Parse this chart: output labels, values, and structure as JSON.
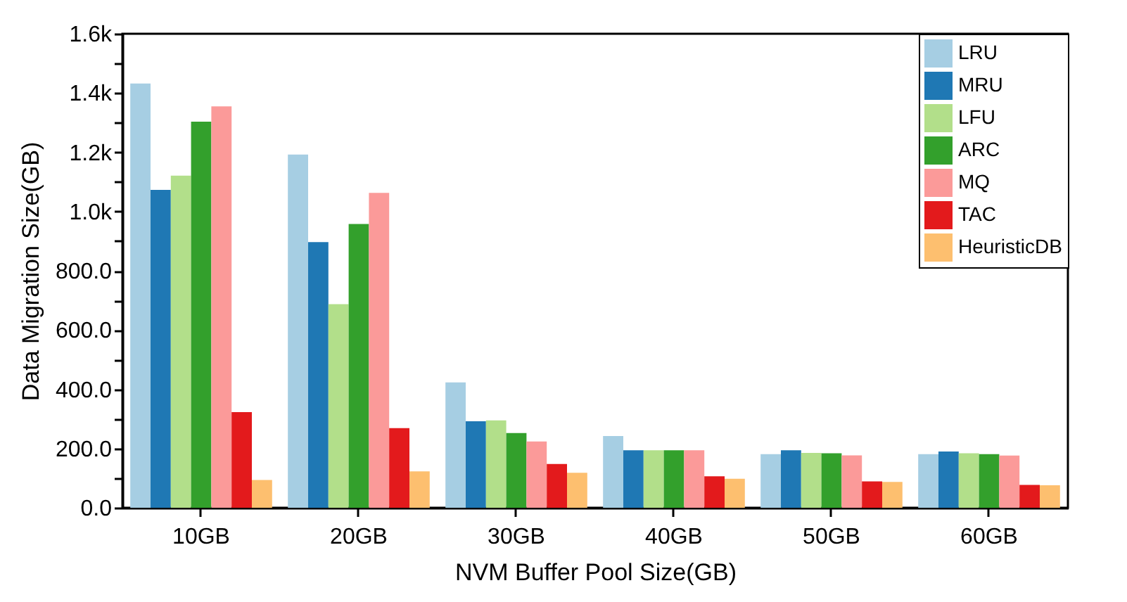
{
  "chart_data": {
    "type": "bar",
    "xlabel": "NVM Buffer Pool Size(GB)",
    "ylabel": "Data Migration Size(GB)",
    "categories": [
      "10GB",
      "20GB",
      "30GB",
      "40GB",
      "50GB",
      "60GB"
    ],
    "series": [
      {
        "name": "LRU",
        "color": "#a6cee3",
        "values": [
          1432,
          1192,
          423,
          242,
          181,
          181
        ]
      },
      {
        "name": "MRU",
        "color": "#1f78b4",
        "values": [
          1073,
          897,
          292,
          194,
          194,
          190
        ]
      },
      {
        "name": "LFU",
        "color": "#b2df8a",
        "values": [
          1121,
          687,
          295,
          194,
          185,
          184
        ]
      },
      {
        "name": "ARC",
        "color": "#33a02c",
        "values": [
          1303,
          958,
          252,
          194,
          184,
          181
        ]
      },
      {
        "name": "MQ",
        "color": "#fb9a99",
        "values": [
          1355,
          1063,
          224,
          194,
          177,
          176
        ]
      },
      {
        "name": "TAC",
        "color": "#e31a1c",
        "values": [
          323,
          269,
          148,
          106,
          89,
          77
        ]
      },
      {
        "name": "HeuristicDB",
        "color": "#fdbf6f",
        "values": [
          94,
          123,
          118,
          98,
          87,
          76
        ]
      }
    ],
    "ylim": [
      0,
      1600
    ],
    "yticks": [
      {
        "value": 0,
        "label": "0.0"
      },
      {
        "value": 100,
        "label": null
      },
      {
        "value": 200,
        "label": "200.0"
      },
      {
        "value": 300,
        "label": null
      },
      {
        "value": 400,
        "label": "400.0"
      },
      {
        "value": 500,
        "label": null
      },
      {
        "value": 600,
        "label": "600.0"
      },
      {
        "value": 700,
        "label": null
      },
      {
        "value": 800,
        "label": "800.0"
      },
      {
        "value": 900,
        "label": null
      },
      {
        "value": 1000,
        "label": "1.0k"
      },
      {
        "value": 1100,
        "label": null
      },
      {
        "value": 1200,
        "label": "1.2k"
      },
      {
        "value": 1300,
        "label": null
      },
      {
        "value": 1400,
        "label": "1.4k"
      },
      {
        "value": 1500,
        "label": null
      },
      {
        "value": 1600,
        "label": "1.6k"
      }
    ],
    "grid": false,
    "legend": "top right"
  }
}
